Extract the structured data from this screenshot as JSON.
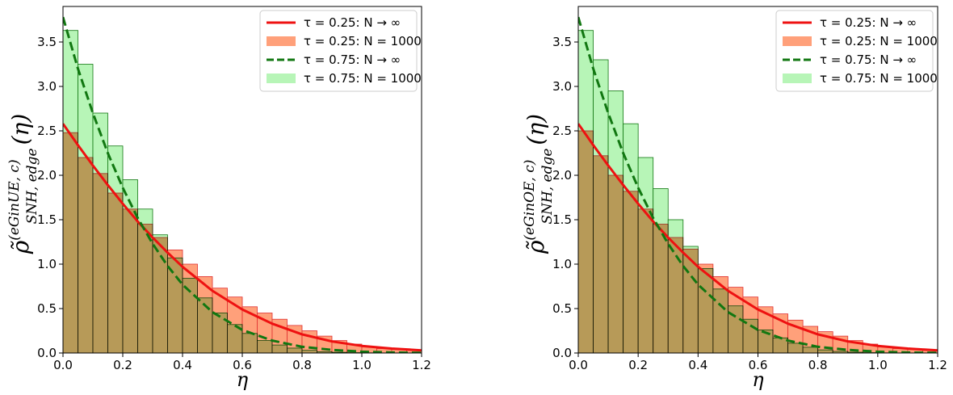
{
  "chart_data": [
    {
      "type": "line",
      "ylabel": "ρ̃(eGinUE, c)SNH, edge(η)",
      "ylabel_parts": {
        "base": "ρ̃",
        "sup": "(eGinUE, c)",
        "sub": "SNH, edge",
        "arg": "(η)"
      },
      "xlabel": "η",
      "xlim": [
        0.0,
        1.2
      ],
      "ylim": [
        0.0,
        3.9
      ],
      "xticks": [
        "0.0",
        "0.2",
        "0.4",
        "0.6",
        "0.8",
        "1.0",
        "1.2"
      ],
      "yticks": [
        "0.0",
        "0.5",
        "1.0",
        "1.5",
        "2.0",
        "2.5",
        "3.0",
        "3.5"
      ],
      "legend_position": "top-right",
      "legend": [
        {
          "label": "τ = 0.25: N → ∞",
          "kind": "line",
          "color": "#ee1111"
        },
        {
          "label": "τ = 0.25: N = 1000",
          "kind": "fill",
          "color": "#ffa07a"
        },
        {
          "label": "τ = 0.75: N → ∞",
          "kind": "dashed",
          "color": "#117711"
        },
        {
          "label": "τ = 0.75: N = 1000",
          "kind": "fill",
          "color": "#b7f5b7"
        }
      ],
      "curves": [
        {
          "name": "τ = 0.25: N → ∞",
          "style": "solid",
          "color": "#ee1111",
          "x": [
            0.0,
            0.05,
            0.1,
            0.15,
            0.2,
            0.25,
            0.3,
            0.35,
            0.4,
            0.5,
            0.6,
            0.7,
            0.8,
            0.9,
            1.0,
            1.1,
            1.2
          ],
          "y": [
            2.58,
            2.34,
            2.11,
            1.89,
            1.68,
            1.48,
            1.3,
            1.13,
            0.97,
            0.7,
            0.49,
            0.33,
            0.21,
            0.13,
            0.08,
            0.05,
            0.03
          ]
        },
        {
          "name": "τ = 0.75: N → ∞",
          "style": "dashed",
          "color": "#117711",
          "x": [
            0.0,
            0.05,
            0.1,
            0.15,
            0.2,
            0.25,
            0.3,
            0.35,
            0.4,
            0.5,
            0.6,
            0.7,
            0.8,
            0.9,
            1.0,
            1.1,
            1.2
          ],
          "y": [
            3.78,
            3.2,
            2.7,
            2.25,
            1.86,
            1.52,
            1.23,
            0.98,
            0.77,
            0.46,
            0.26,
            0.14,
            0.07,
            0.035,
            0.015,
            0.006,
            0.002
          ]
        }
      ],
      "histograms": [
        {
          "name": "τ = 0.25: N = 1000",
          "color": "#ffa07a",
          "edge": "#e03030",
          "bin_width": 0.05,
          "values": [
            2.48,
            2.2,
            2.02,
            1.8,
            1.62,
            1.45,
            1.3,
            1.16,
            1.0,
            0.86,
            0.73,
            0.63,
            0.52,
            0.45,
            0.38,
            0.31,
            0.25,
            0.19,
            0.14,
            0.1,
            0.07,
            0.05,
            0.04,
            0.03
          ]
        },
        {
          "name": "τ = 0.75: N = 1000",
          "color": "#b7f5b7",
          "edge": "#117711",
          "bin_width": 0.05,
          "values": [
            3.63,
            3.25,
            2.7,
            2.33,
            1.95,
            1.62,
            1.33,
            1.07,
            0.84,
            0.62,
            0.45,
            0.32,
            0.22,
            0.14,
            0.09,
            0.055,
            0.03,
            0.015,
            0.008,
            0.004,
            0.002,
            0.001,
            0.0,
            0.0
          ]
        }
      ]
    },
    {
      "type": "line",
      "ylabel": "ρ̃(eGinOE, c)SNH, edge(η)",
      "ylabel_parts": {
        "base": "ρ̃",
        "sup": "(eGinOE, c)",
        "sub": "SNH, edge",
        "arg": "(η)"
      },
      "xlabel": "η",
      "xlim": [
        0.0,
        1.2
      ],
      "ylim": [
        0.0,
        3.9
      ],
      "xticks": [
        "0.0",
        "0.2",
        "0.4",
        "0.6",
        "0.8",
        "1.0",
        "1.2"
      ],
      "yticks": [
        "0.0",
        "0.5",
        "1.0",
        "1.5",
        "2.0",
        "2.5",
        "3.0",
        "3.5"
      ],
      "legend_position": "top-right",
      "legend": [
        {
          "label": "τ = 0.25: N → ∞",
          "kind": "line",
          "color": "#ee1111"
        },
        {
          "label": "τ = 0.25: N = 1000",
          "kind": "fill",
          "color": "#ffa07a"
        },
        {
          "label": "τ = 0.75: N → ∞",
          "kind": "dashed",
          "color": "#117711"
        },
        {
          "label": "τ = 0.75: N = 1000",
          "kind": "fill",
          "color": "#b7f5b7"
        }
      ],
      "curves": [
        {
          "name": "τ = 0.25: N → ∞",
          "style": "solid",
          "color": "#ee1111",
          "x": [
            0.0,
            0.05,
            0.1,
            0.15,
            0.2,
            0.25,
            0.3,
            0.35,
            0.4,
            0.5,
            0.6,
            0.7,
            0.8,
            0.9,
            1.0,
            1.1,
            1.2
          ],
          "y": [
            2.58,
            2.34,
            2.11,
            1.89,
            1.68,
            1.48,
            1.3,
            1.13,
            0.97,
            0.7,
            0.49,
            0.33,
            0.21,
            0.13,
            0.08,
            0.05,
            0.03
          ]
        },
        {
          "name": "τ = 0.75: N → ∞",
          "style": "dashed",
          "color": "#117711",
          "x": [
            0.0,
            0.05,
            0.1,
            0.15,
            0.2,
            0.25,
            0.3,
            0.35,
            0.4,
            0.5,
            0.6,
            0.7,
            0.8,
            0.9,
            1.0,
            1.1,
            1.2
          ],
          "y": [
            3.78,
            3.2,
            2.7,
            2.25,
            1.86,
            1.52,
            1.23,
            0.98,
            0.77,
            0.46,
            0.26,
            0.14,
            0.07,
            0.035,
            0.015,
            0.006,
            0.002
          ]
        }
      ],
      "histograms": [
        {
          "name": "τ = 0.25: N = 1000",
          "color": "#ffa07a",
          "edge": "#e03030",
          "bin_width": 0.05,
          "values": [
            2.5,
            2.22,
            2.0,
            1.82,
            1.62,
            1.45,
            1.3,
            1.17,
            1.0,
            0.86,
            0.74,
            0.63,
            0.52,
            0.44,
            0.37,
            0.3,
            0.24,
            0.19,
            0.14,
            0.1,
            0.07,
            0.05,
            0.04,
            0.03
          ]
        },
        {
          "name": "τ = 0.75: N = 1000",
          "color": "#b7f5b7",
          "edge": "#117711",
          "bin_width": 0.05,
          "values": [
            3.63,
            3.3,
            2.95,
            2.58,
            2.2,
            1.85,
            1.5,
            1.2,
            0.95,
            0.72,
            0.53,
            0.38,
            0.26,
            0.17,
            0.11,
            0.065,
            0.035,
            0.018,
            0.009,
            0.004,
            0.002,
            0.001,
            0.0,
            0.0
          ]
        }
      ]
    }
  ]
}
